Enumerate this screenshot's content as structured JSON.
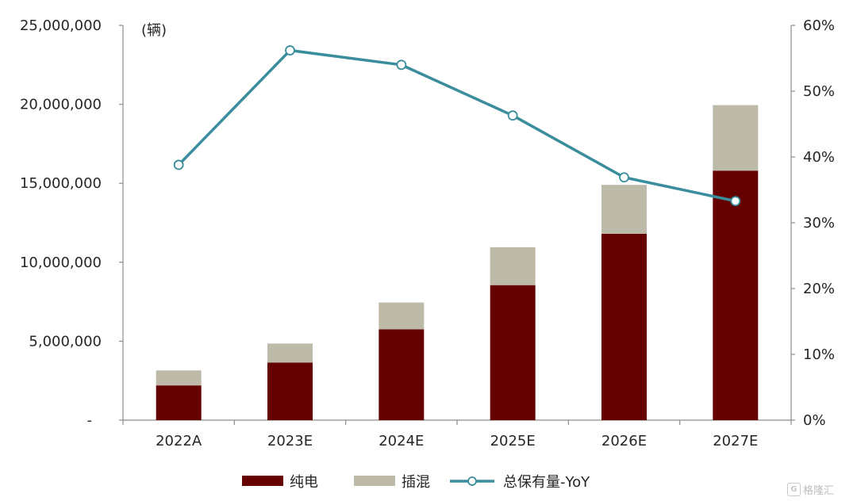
{
  "chart_data": {
    "type": "bar",
    "stacked": true,
    "unit_label": "(辆)",
    "categories": [
      "2022A",
      "2023E",
      "2024E",
      "2025E",
      "2026E",
      "2027E"
    ],
    "series": [
      {
        "name": "纯电",
        "type": "bar",
        "axis": "left",
        "color": "#650000",
        "values": [
          2200000,
          3650000,
          5750000,
          8550000,
          11800000,
          15800000
        ]
      },
      {
        "name": "插混",
        "type": "bar",
        "axis": "left",
        "color": "#bdbaa9",
        "values": [
          950000,
          1200000,
          1700000,
          2400000,
          3100000,
          4150000
        ]
      },
      {
        "name": "总保有量-YoY",
        "type": "line",
        "axis": "right",
        "color": "#3a8d9c",
        "values": [
          0.388,
          0.562,
          0.54,
          0.463,
          0.369,
          0.333
        ]
      }
    ],
    "y_left": {
      "min": 0,
      "max": 25000000,
      "step": 5000000,
      "tick_labels": [
        "-",
        "5,000,000",
        "10,000,000",
        "15,000,000",
        "20,000,000",
        "25,000,000"
      ]
    },
    "y_right": {
      "min": 0,
      "max": 0.6,
      "step": 0.1,
      "tick_labels": [
        "0%",
        "10%",
        "20%",
        "30%",
        "40%",
        "50%",
        "60%"
      ]
    },
    "grid": false,
    "legend_position": "bottom"
  },
  "watermark": {
    "logo_glyph": "G",
    "text": "格隆汇"
  }
}
